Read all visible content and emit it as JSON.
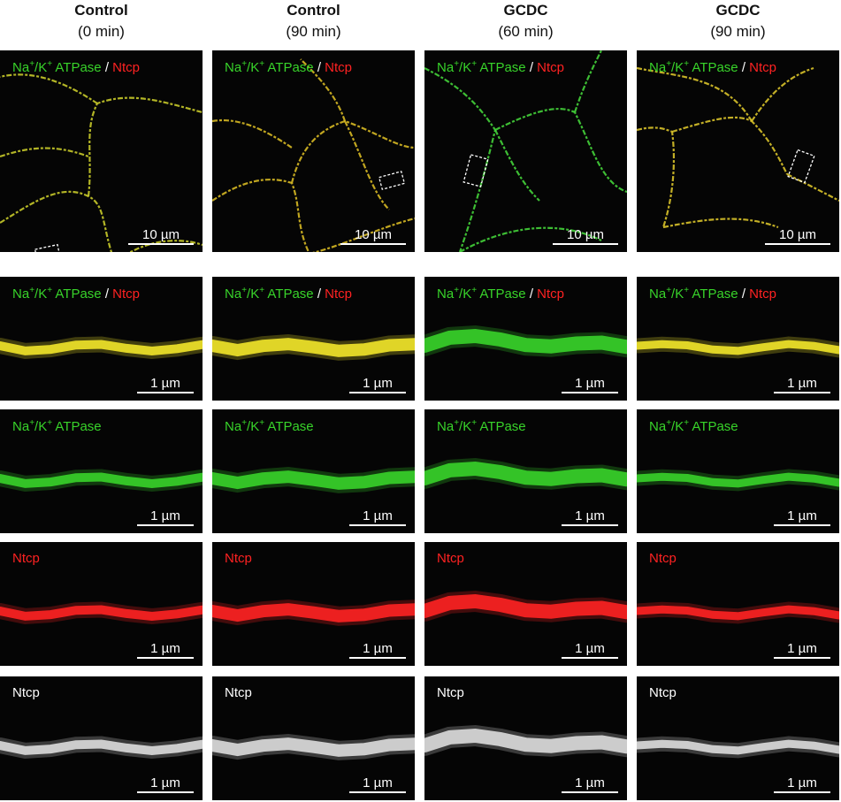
{
  "columns": [
    {
      "condition": "Control",
      "time": "(0 min)"
    },
    {
      "condition": "Control",
      "time": "(90 min)"
    },
    {
      "condition": "GCDC",
      "time": "(60 min)"
    },
    {
      "condition": "GCDC",
      "time": "(90 min)"
    }
  ],
  "labels": {
    "na": "Na",
    "sup_plus": "+",
    "k": "/K",
    "atpase": " ATPase",
    "slash": " / ",
    "ntcp": "Ntcp"
  },
  "scalebars": {
    "overview": "10 µm",
    "zoom": "1 µm"
  },
  "colors": {
    "green": "#38d32a",
    "red": "#ff2222",
    "yellow": "#f2e62a",
    "gray": "#dddddd"
  }
}
